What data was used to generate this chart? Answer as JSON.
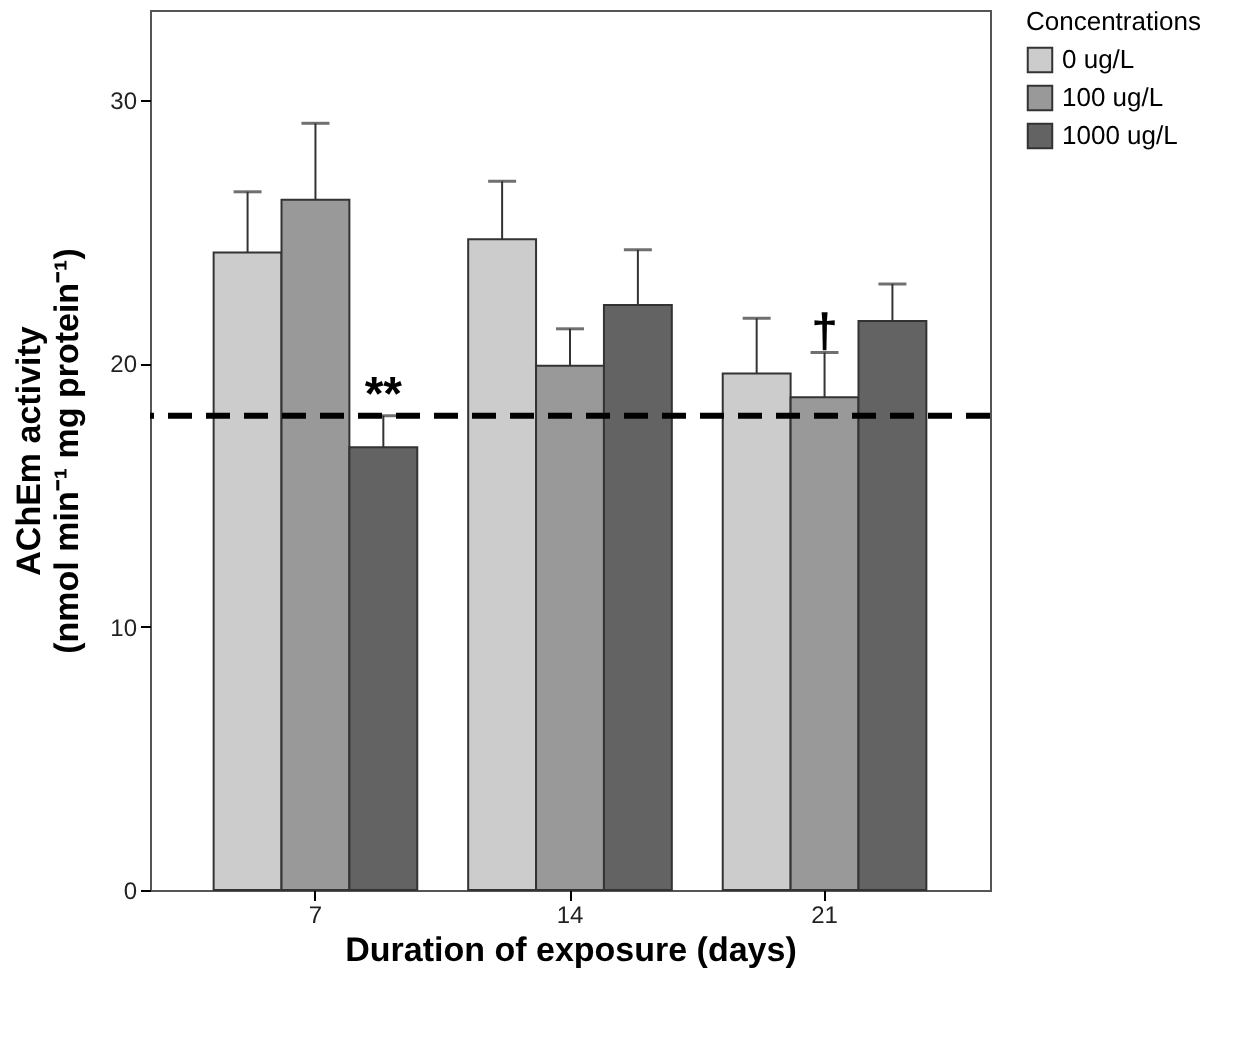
{
  "chart_data": {
    "type": "bar",
    "xlabel": "Duration of exposure (days)",
    "ylabel": "AChEm activity (nmol min⁻¹ mg protein⁻¹)",
    "legend_title": "Concentrations",
    "legend": "top right",
    "grid": false,
    "categories": [
      "7",
      "14",
      "21"
    ],
    "series": [
      {
        "name": "0 ug/L",
        "color": "#cccccc",
        "values": [
          24.2,
          24.7,
          19.6
        ],
        "errors": [
          [
            24.2,
            26.5
          ],
          [
            24.7,
            26.9
          ],
          [
            19.6,
            21.7
          ]
        ]
      },
      {
        "name": "100 ug/L",
        "color": "#999999",
        "values": [
          26.2,
          19.9,
          18.7
        ],
        "errors": [
          [
            26.2,
            29.1
          ],
          [
            19.9,
            21.3
          ],
          [
            18.7,
            20.4
          ]
        ]
      },
      {
        "name": "1000 ug/L",
        "color": "#636363",
        "values": [
          16.8,
          22.2,
          21.6
        ],
        "errors": [
          [
            16.8,
            18.0
          ],
          [
            22.2,
            24.3
          ],
          [
            21.6,
            23.0
          ]
        ]
      }
    ],
    "ylim": [
      0,
      33.4
    ],
    "yticks": [
      0,
      10,
      20,
      30
    ],
    "ref_lines": [
      {
        "axis": "y",
        "value": 18,
        "color": "#000000",
        "line_style": "dashed"
      }
    ],
    "annotations": [
      {
        "text": "**",
        "x": "7",
        "y": 18.0
      },
      {
        "text": "†",
        "x": "21",
        "y": 20.4
      }
    ]
  }
}
